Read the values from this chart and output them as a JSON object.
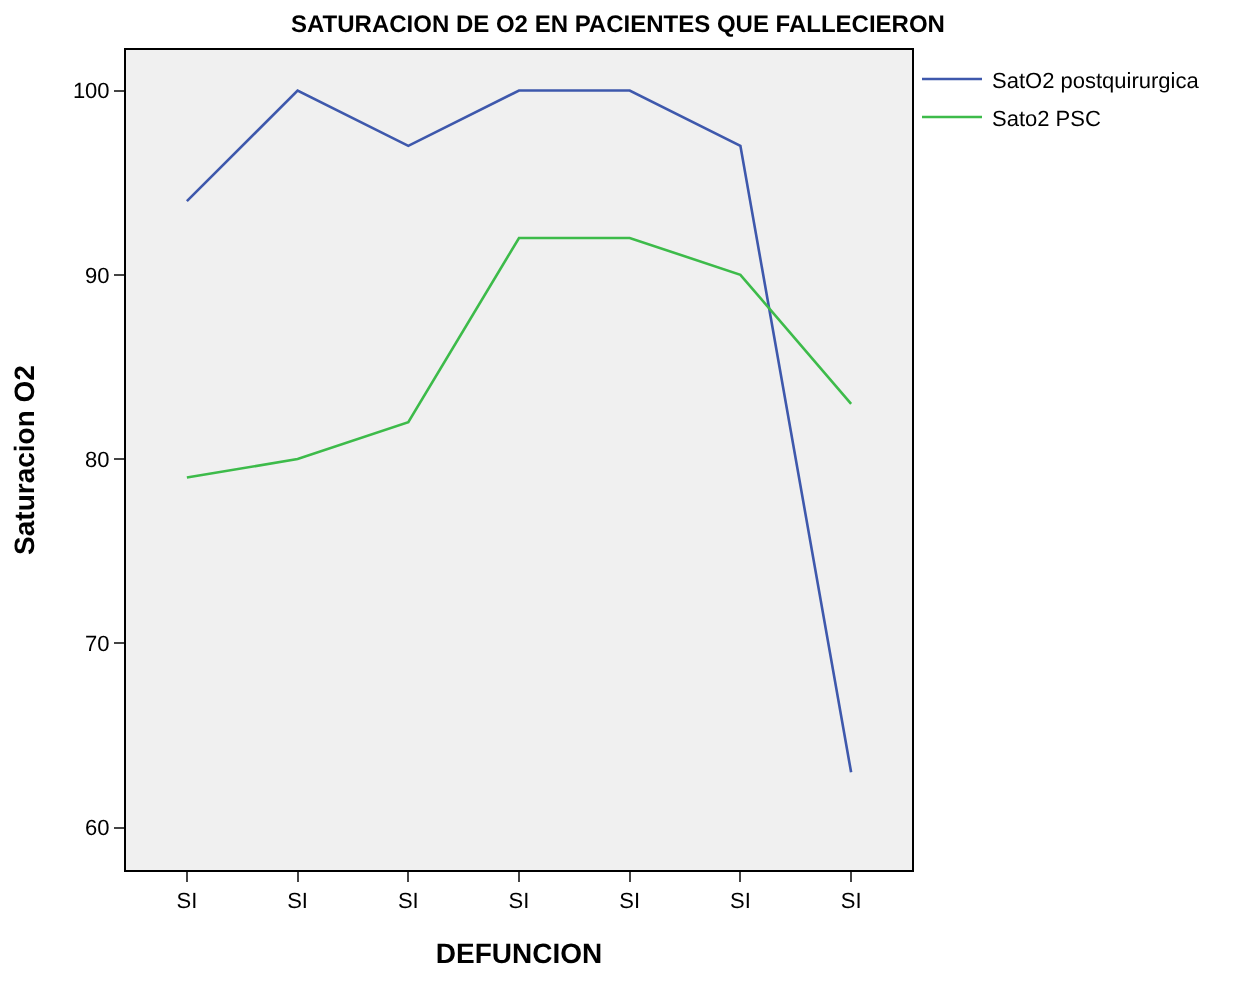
{
  "chart_data": {
    "type": "line",
    "title": "SATURACION DE O2 EN PACIENTES QUE FALLECIERON",
    "xlabel": "DEFUNCION",
    "ylabel": "Saturacion O2",
    "categories": [
      "SI",
      "SI",
      "SI",
      "SI",
      "SI",
      "SI",
      "SI"
    ],
    "series": [
      {
        "name": "SatO2 postquirurgica",
        "color": "#3e58ac",
        "values": [
          94,
          100,
          97,
          100,
          100,
          97,
          63
        ]
      },
      {
        "name": "Sato2 PSC",
        "color": "#3dbb4a",
        "values": [
          79,
          80,
          82,
          92,
          92,
          90,
          83
        ]
      }
    ],
    "ylim": [
      57.7,
      102.2
    ],
    "yticks": [
      60,
      70,
      80,
      90,
      100
    ],
    "grid": false,
    "legend": "top right",
    "marker": "none",
    "line_style": "solid"
  }
}
